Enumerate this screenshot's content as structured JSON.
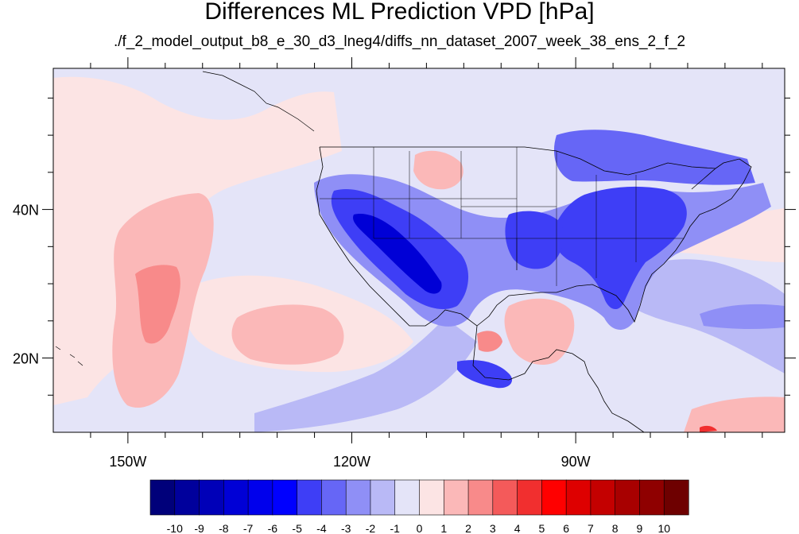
{
  "title": "Differences ML Prediction VPD [hPa]",
  "subtitle": "./f_2_model_output_b8_e_30_d3_lneg4/diffs_nn_dataset_2007_week_38_ens_2_f_2",
  "map": {
    "lon_range": [
      -160,
      -62
    ],
    "lat_range": [
      10,
      59
    ],
    "lat_labels": [
      {
        "value": 40,
        "label": "40N"
      },
      {
        "value": 20,
        "label": "20N"
      }
    ],
    "lon_labels": [
      {
        "value": -150,
        "label": "150W"
      },
      {
        "value": -120,
        "label": "120W"
      },
      {
        "value": -90,
        "label": "90W"
      }
    ]
  },
  "colorbar": {
    "labels": [
      "-10",
      "-9",
      "-8",
      "-7",
      "-6",
      "-5",
      "-4",
      "-3",
      "-2",
      "-1",
      "0",
      "1",
      "2",
      "3",
      "4",
      "5",
      "6",
      "7",
      "8",
      "9",
      "10"
    ],
    "colors": [
      "#00007a",
      "#00009c",
      "#0000b8",
      "#0000d6",
      "#0000ec",
      "#0000ff",
      "#3e3ef6",
      "#6666f6",
      "#8f8ff6",
      "#b9b9f6",
      "#e4e4f8",
      "#fce4e4",
      "#fbb8b8",
      "#f88a8a",
      "#f45a5a",
      "#f12f2f",
      "#ff0000",
      "#de0000",
      "#c40000",
      "#a80000",
      "#8f0000",
      "#6e0000"
    ]
  }
}
